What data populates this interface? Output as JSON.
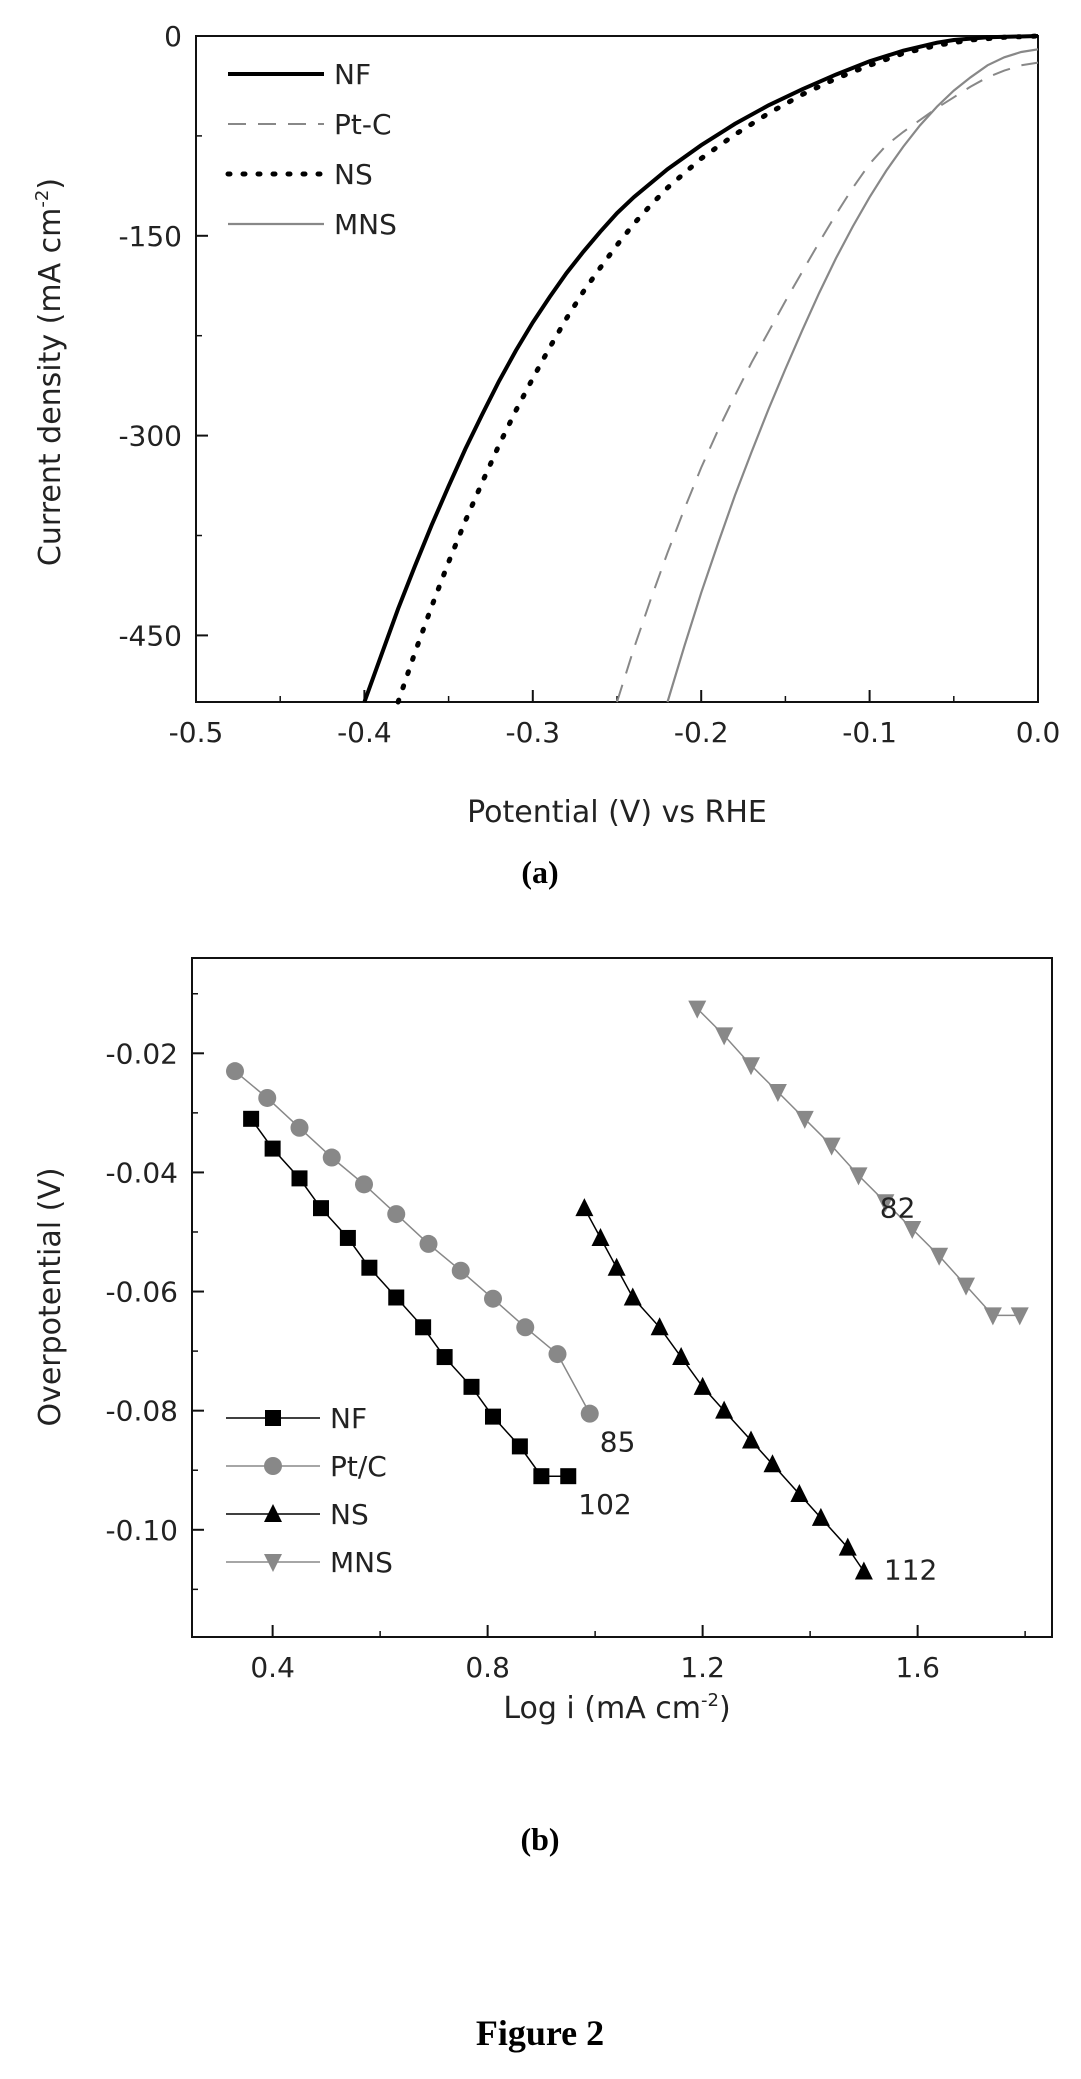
{
  "figure_caption": "Figure 2",
  "chart_data": [
    {
      "type": "line",
      "panel_label": "(a)",
      "xlabel": "Potential (V) vs RHE",
      "ylabel": "Current density (mA cm",
      "ylabel_sup": "-2",
      "ylabel_close": ")",
      "xlim": [
        -0.5,
        0.0
      ],
      "ylim": [
        -500,
        0
      ],
      "x_ticks": [
        -0.5,
        -0.4,
        -0.3,
        -0.2,
        -0.1,
        0.0
      ],
      "x_tick_labels": [
        "-0.5",
        "-0.4",
        "-0.3",
        "-0.2",
        "-0.1",
        "0.0"
      ],
      "y_ticks": [
        0,
        -150,
        -300,
        -450
      ],
      "y_tick_labels": [
        "0",
        "-150",
        "-300",
        "-450"
      ],
      "grid": false,
      "legend": "top-left",
      "series": [
        {
          "name": "NF",
          "style": "solid-thick",
          "color": "#000000",
          "x": [
            -0.4,
            -0.39,
            -0.38,
            -0.37,
            -0.36,
            -0.35,
            -0.34,
            -0.33,
            -0.32,
            -0.31,
            -0.3,
            -0.29,
            -0.28,
            -0.27,
            -0.26,
            -0.25,
            -0.24,
            -0.22,
            -0.2,
            -0.18,
            -0.16,
            -0.14,
            -0.12,
            -0.1,
            -0.08,
            -0.06,
            -0.05,
            -0.03,
            0.0
          ],
          "y": [
            -500,
            -465,
            -430,
            -398,
            -367,
            -338,
            -310,
            -284,
            -259,
            -236,
            -215,
            -196,
            -178,
            -162,
            -147,
            -133,
            -121,
            -100,
            -82,
            -66,
            -52,
            -40,
            -29,
            -19,
            -11,
            -5,
            -3,
            -1,
            0
          ]
        },
        {
          "name": "Pt-C",
          "style": "dashed",
          "color": "#888888",
          "x": [
            -0.25,
            -0.24,
            -0.23,
            -0.22,
            -0.21,
            -0.2,
            -0.19,
            -0.18,
            -0.17,
            -0.16,
            -0.15,
            -0.14,
            -0.13,
            -0.12,
            -0.11,
            -0.1,
            -0.09,
            -0.08,
            -0.07,
            -0.06,
            -0.05,
            -0.04,
            -0.03,
            -0.02,
            -0.01,
            0.0
          ],
          "y": [
            -500,
            -460,
            -423,
            -388,
            -355,
            -324,
            -296,
            -270,
            -245,
            -222,
            -199,
            -177,
            -155,
            -134,
            -114,
            -96,
            -82,
            -72,
            -63,
            -54,
            -46,
            -38,
            -31,
            -26,
            -22,
            -20
          ]
        },
        {
          "name": "NS",
          "style": "dotted",
          "color": "#000000",
          "x": [
            -0.38,
            -0.37,
            -0.36,
            -0.35,
            -0.34,
            -0.33,
            -0.32,
            -0.31,
            -0.3,
            -0.29,
            -0.28,
            -0.27,
            -0.26,
            -0.25,
            -0.24,
            -0.23,
            -0.22,
            -0.2,
            -0.18,
            -0.16,
            -0.14,
            -0.12,
            -0.1,
            -0.08,
            -0.06,
            -0.04,
            -0.02,
            0.0
          ],
          "y": [
            -500,
            -463,
            -428,
            -395,
            -364,
            -335,
            -307,
            -281,
            -257,
            -234,
            -212,
            -192,
            -174,
            -157,
            -141,
            -127,
            -114,
            -92,
            -74,
            -58,
            -44,
            -32,
            -22,
            -13,
            -7,
            -3,
            -1,
            0
          ]
        },
        {
          "name": "MNS",
          "style": "solid-thin",
          "color": "#888888",
          "x": [
            -0.22,
            -0.21,
            -0.2,
            -0.19,
            -0.18,
            -0.17,
            -0.16,
            -0.15,
            -0.14,
            -0.13,
            -0.12,
            -0.11,
            -0.1,
            -0.09,
            -0.08,
            -0.07,
            -0.06,
            -0.05,
            -0.04,
            -0.03,
            -0.02,
            -0.01,
            0.0
          ],
          "y": [
            -500,
            -458,
            -418,
            -381,
            -345,
            -312,
            -280,
            -250,
            -221,
            -193,
            -167,
            -143,
            -121,
            -101,
            -83,
            -67,
            -53,
            -41,
            -31,
            -22,
            -16,
            -12,
            -10
          ]
        }
      ]
    },
    {
      "type": "scatter",
      "panel_label": "(b)",
      "xlabel": "Log i (mA cm",
      "xlabel_sup": "-2",
      "xlabel_close": ")",
      "ylabel": "Overpotential (V)",
      "xlim": [
        0.25,
        1.85
      ],
      "ylim": [
        -0.118,
        -0.004
      ],
      "x_ticks": [
        0.4,
        0.8,
        1.2,
        1.6
      ],
      "x_tick_labels": [
        "0.4",
        "0.8",
        "1.2",
        "1.6"
      ],
      "y_ticks": [
        -0.02,
        -0.04,
        -0.06,
        -0.08,
        -0.1
      ],
      "y_tick_labels": [
        "-0.02",
        "-0.04",
        "-0.06",
        "-0.08",
        "-0.10"
      ],
      "grid": false,
      "legend": "bottom-left",
      "series": [
        {
          "name": "NF",
          "marker": "square",
          "color": "#000000",
          "x": [
            0.36,
            0.4,
            0.45,
            0.49,
            0.54,
            0.58,
            0.63,
            0.68,
            0.72,
            0.77,
            0.81,
            0.86,
            0.9,
            0.95
          ],
          "y": [
            -0.031,
            -0.036,
            -0.041,
            -0.046,
            -0.051,
            -0.056,
            -0.061,
            -0.066,
            -0.071,
            -0.076,
            -0.081,
            -0.086,
            -0.091,
            -0.091
          ],
          "tafel_label": "102"
        },
        {
          "name": "Pt/C",
          "marker": "circle",
          "color": "#888888",
          "x": [
            0.33,
            0.39,
            0.45,
            0.51,
            0.57,
            0.63,
            0.69,
            0.75,
            0.81,
            0.87,
            0.93,
            0.99
          ],
          "y": [
            -0.023,
            -0.0275,
            -0.0325,
            -0.0375,
            -0.042,
            -0.047,
            -0.052,
            -0.0565,
            -0.0612,
            -0.066,
            -0.0705,
            -0.0805
          ],
          "tafel_label": "85"
        },
        {
          "name": "NS",
          "marker": "triangle-up",
          "color": "#000000",
          "x": [
            0.98,
            1.01,
            1.04,
            1.07,
            1.12,
            1.16,
            1.2,
            1.24,
            1.29,
            1.33,
            1.38,
            1.42,
            1.47,
            1.5
          ],
          "y": [
            -0.046,
            -0.051,
            -0.056,
            -0.061,
            -0.066,
            -0.071,
            -0.076,
            -0.08,
            -0.085,
            -0.089,
            -0.094,
            -0.098,
            -0.103,
            -0.107
          ],
          "tafel_label": "112"
        },
        {
          "name": "MNS",
          "marker": "triangle-down",
          "color": "#888888",
          "x": [
            1.19,
            1.24,
            1.29,
            1.34,
            1.39,
            1.44,
            1.49,
            1.54,
            1.59,
            1.64,
            1.69,
            1.74,
            1.79
          ],
          "y": [
            -0.0125,
            -0.017,
            -0.022,
            -0.0265,
            -0.031,
            -0.0355,
            -0.0405,
            -0.045,
            -0.0495,
            -0.054,
            -0.059,
            -0.064,
            -0.064
          ],
          "tafel_label": "82"
        }
      ]
    }
  ]
}
